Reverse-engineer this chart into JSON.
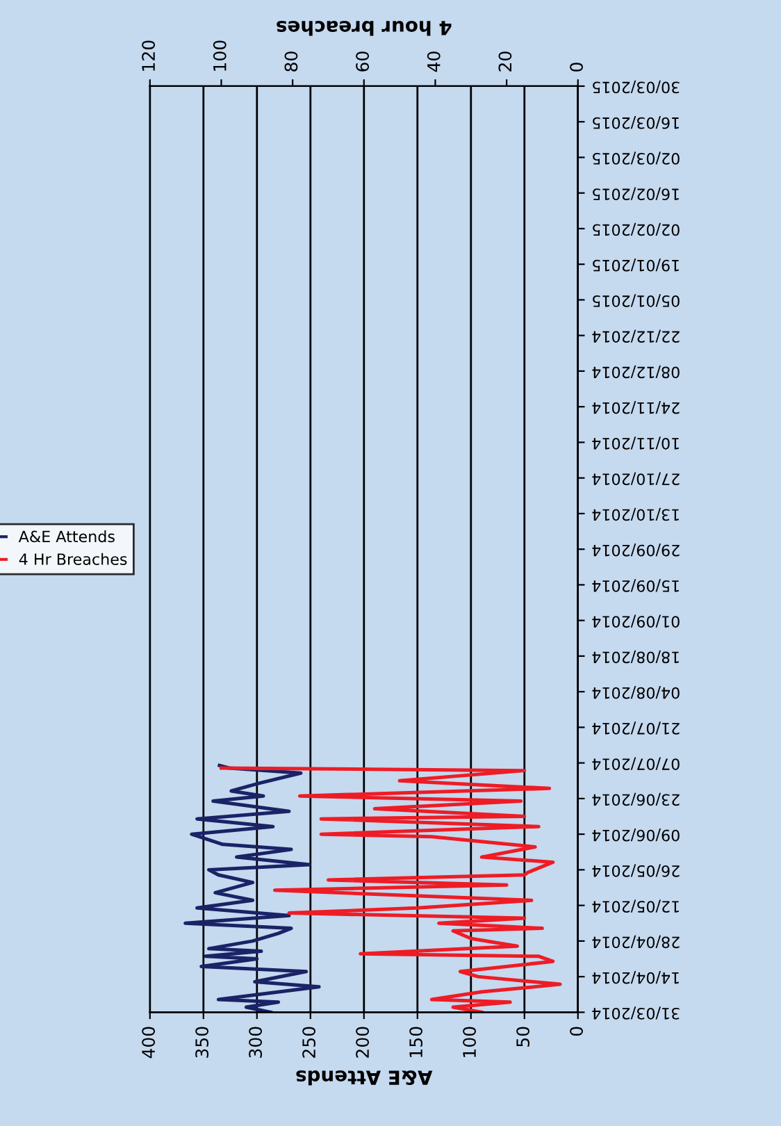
{
  "chart_data": {
    "type": "line",
    "orientation": "horizontal",
    "xlabel": "A&E Attends",
    "x2label": "4 hour breaches",
    "ylim": [
      "2014-03-31",
      "2015-03-30"
    ],
    "yticks": [
      {
        "value": "2014-03-31",
        "label": "31/03/2014"
      },
      {
        "value": "2014-04-14",
        "label": "14/04/2014"
      },
      {
        "value": "2014-04-28",
        "label": "28/04/2014"
      },
      {
        "value": "2014-05-12",
        "label": "12/05/2014"
      },
      {
        "value": "2014-05-26",
        "label": "26/05/2014"
      },
      {
        "value": "2014-06-09",
        "label": "09/06/2014"
      },
      {
        "value": "2014-06-23",
        "label": "23/06/2014"
      },
      {
        "value": "2014-07-07",
        "label": "07/07/2014"
      },
      {
        "value": "2014-07-21",
        "label": "21/07/2014"
      },
      {
        "value": "2014-08-04",
        "label": "04/08/2014"
      },
      {
        "value": "2014-08-18",
        "label": "18/08/2014"
      },
      {
        "value": "2014-09-01",
        "label": "01/09/2014"
      },
      {
        "value": "2014-09-15",
        "label": "15/09/2014"
      },
      {
        "value": "2014-09-29",
        "label": "29/09/2014"
      },
      {
        "value": "2014-10-13",
        "label": "13/10/2014"
      },
      {
        "value": "2014-10-27",
        "label": "27/10/2014"
      },
      {
        "value": "2014-11-10",
        "label": "10/11/2014"
      },
      {
        "value": "2014-11-24",
        "label": "24/11/2014"
      },
      {
        "value": "2014-12-08",
        "label": "08/12/2014"
      },
      {
        "value": "2014-12-22",
        "label": "22/12/2014"
      },
      {
        "value": "2015-01-05",
        "label": "05/01/2015"
      },
      {
        "value": "2015-01-19",
        "label": "19/01/2015"
      },
      {
        "value": "2015-02-02",
        "label": "02/02/2015"
      },
      {
        "value": "2015-02-16",
        "label": "16/02/2015"
      },
      {
        "value": "2015-03-02",
        "label": "02/03/2015"
      },
      {
        "value": "2015-03-16",
        "label": "16/03/2015"
      },
      {
        "value": "2015-03-30",
        "label": "30/03/2015"
      }
    ],
    "xlim": [
      400,
      0
    ],
    "xticks": [
      0,
      50,
      100,
      150,
      200,
      250,
      300,
      350,
      400
    ],
    "x2lim": [
      120,
      0
    ],
    "x2ticks": [
      0,
      20,
      40,
      60,
      80,
      100,
      120
    ],
    "grid": "x",
    "legend": "left",
    "series": [
      {
        "name": "A&E Attends",
        "color": "#1a2366",
        "x": [
          "2014-03-31",
          "2014-04-02",
          "2014-04-04",
          "2014-04-05",
          "2014-04-10",
          "2014-04-12",
          "2014-04-16",
          "2014-04-18",
          "2014-04-21",
          "2014-04-22",
          "2014-04-24",
          "2014-04-25",
          "2014-04-28",
          "2014-05-01",
          "2014-05-03",
          "2014-05-05",
          "2014-05-08",
          "2014-05-11",
          "2014-05-14",
          "2014-05-17",
          "2014-05-21",
          "2014-05-24",
          "2014-05-26",
          "2014-05-28",
          "2014-05-31",
          "2014-06-03",
          "2014-06-05",
          "2014-06-09",
          "2014-06-12",
          "2014-06-15",
          "2014-06-18",
          "2014-06-22",
          "2014-06-24",
          "2014-06-26",
          "2014-06-29",
          "2014-07-03",
          "2014-07-05",
          "2014-07-06"
        ],
        "values": [
          287,
          310,
          280,
          336,
          242,
          302,
          254,
          352,
          300,
          348,
          296,
          345,
          304,
          280,
          268,
          367,
          270,
          356,
          304,
          339,
          304,
          336,
          345,
          251,
          319,
          268,
          332,
          361,
          285,
          356,
          270,
          341,
          294,
          324,
          298,
          259,
          326,
          335
        ]
      },
      {
        "name": "4 Hr Breaches",
        "color": "#ee1c25",
        "axis": "x2",
        "x": [
          "2014-03-31",
          "2014-04-02",
          "2014-04-04",
          "2014-04-05",
          "2014-04-08",
          "2014-04-11",
          "2014-04-14",
          "2014-04-16",
          "2014-04-20",
          "2014-04-22",
          "2014-04-23",
          "2014-04-26",
          "2014-04-29",
          "2014-05-02",
          "2014-05-03",
          "2014-05-05",
          "2014-05-07",
          "2014-05-09",
          "2014-05-11",
          "2014-05-14",
          "2014-05-18",
          "2014-05-20",
          "2014-05-22",
          "2014-05-24",
          "2014-05-25",
          "2014-05-29",
          "2014-05-31",
          "2014-06-04",
          "2014-06-08",
          "2014-06-09",
          "2014-06-12",
          "2014-06-15",
          "2014-06-16",
          "2014-06-19",
          "2014-06-22",
          "2014-06-24",
          "2014-06-27",
          "2014-06-30",
          "2014-07-04",
          "2014-07-05"
        ],
        "values": [
          27,
          35,
          19,
          41,
          27,
          5,
          28,
          33,
          7,
          11,
          61,
          17,
          30,
          35,
          10,
          39,
          15,
          81,
          45,
          13,
          85,
          20,
          70,
          15,
          14,
          7,
          27,
          12,
          41,
          72,
          11,
          72,
          15,
          57,
          16,
          78,
          8,
          50,
          15,
          100
        ]
      }
    ]
  }
}
